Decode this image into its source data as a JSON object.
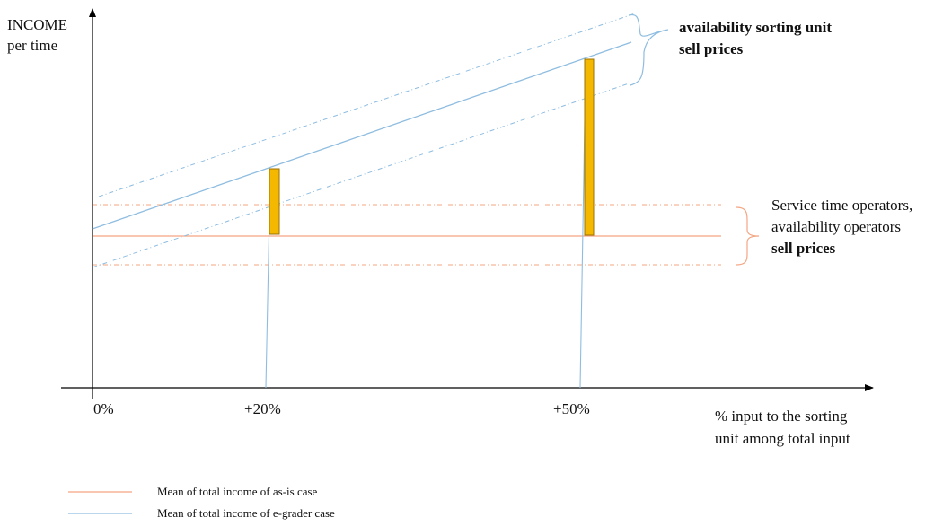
{
  "y_axis_label": [
    "INCOME",
    "per time"
  ],
  "x_axis_label": [
    "% input to the sorting",
    "unit among total input"
  ],
  "x_ticks": [
    "0%",
    "+20%",
    "+50%"
  ],
  "annotation_egrader": [
    "availability sorting unit",
    "sell prices"
  ],
  "annotation_asis": [
    "Service time operators,",
    "availability operators",
    "sell prices"
  ],
  "legend": [
    {
      "label": "Mean of total income of as-is case",
      "color": "#f4a582"
    },
    {
      "label": "Mean of total income of e-grader case",
      "color": "#8fbde0"
    }
  ],
  "colors": {
    "axis": "#000000",
    "asis_line": "#f4a582",
    "egrader_line": "#8fbde0",
    "bar_fill": "#f5b800",
    "bar_stroke": "#9a7200"
  }
}
